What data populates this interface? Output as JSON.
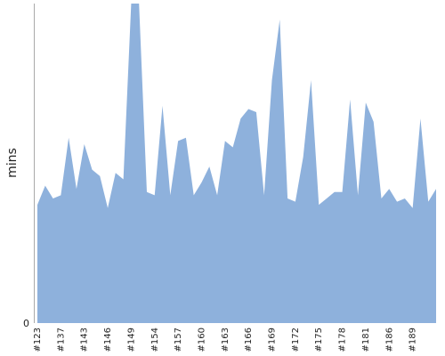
{
  "chart_data": {
    "type": "area",
    "title": "",
    "ylabel": "mins",
    "xlabel": "",
    "ylim": [
      0,
      100
    ],
    "y_ticks": [
      0
    ],
    "grid": false,
    "colors": {
      "area": "#8eb1dc",
      "axis": "#aaaaaa"
    },
    "tick_labels": [
      "#123",
      "#137",
      "#143",
      "#146",
      "#149",
      "#154",
      "#157",
      "#160",
      "#163",
      "#166",
      "#169",
      "#172",
      "#175",
      "#178",
      "#181",
      "#186",
      "#189"
    ],
    "tick_every": 3,
    "series": [
      {
        "values": [
          37,
          43,
          39,
          40,
          58,
          42,
          56,
          48,
          46,
          36,
          47,
          45,
          100,
          100,
          41,
          40,
          68,
          40,
          57,
          58,
          40,
          44,
          49,
          40,
          57,
          55,
          64,
          67,
          66,
          40,
          76,
          95,
          39,
          38,
          52,
          76,
          37,
          39,
          41,
          41,
          70,
          40,
          69,
          63,
          39,
          42,
          38,
          39,
          36,
          64,
          38,
          42
        ]
      }
    ]
  }
}
